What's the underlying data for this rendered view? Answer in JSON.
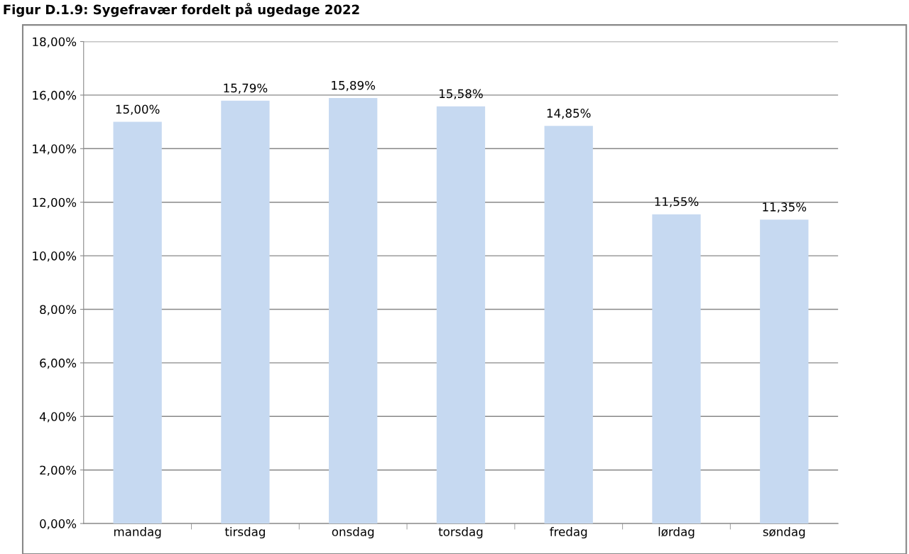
{
  "chart_data": {
    "type": "bar",
    "title": "Figur D.1.9: Sygefravær fordelt på ugedage 2022",
    "categories": [
      "mandag",
      "tirsdag",
      "onsdag",
      "torsdag",
      "fredag",
      "lørdag",
      "søndag"
    ],
    "values": [
      15.0,
      15.79,
      15.89,
      15.58,
      14.85,
      11.55,
      11.35
    ],
    "value_labels": [
      "15,00%",
      "15,79%",
      "15,89%",
      "15,58%",
      "14,85%",
      "11,55%",
      "11,35%"
    ],
    "color": "#c6d9f1",
    "ylim": [
      0,
      18
    ],
    "yticks": [
      {
        "value": 0,
        "label": "0,00%"
      },
      {
        "value": 2,
        "label": "2,00%"
      },
      {
        "value": 4,
        "label": "4,00%"
      },
      {
        "value": 6,
        "label": "6,00%"
      },
      {
        "value": 8,
        "label": "8,00%"
      },
      {
        "value": 10,
        "label": "10,00%"
      },
      {
        "value": 12,
        "label": "12,00%"
      },
      {
        "value": 14,
        "label": "14,00%"
      },
      {
        "value": 16,
        "label": "16,00%"
      },
      {
        "value": 18,
        "label": "18,00%"
      }
    ],
    "grid": "y",
    "legend": false
  }
}
